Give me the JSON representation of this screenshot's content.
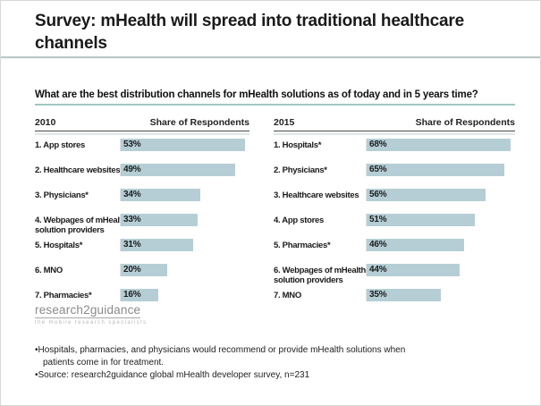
{
  "title": "Survey: mHealth will spread into traditional healthcare channels",
  "question": "What are the best distribution channels for mHealth solutions as of today and in 5 years time?",
  "colors": {
    "bar": "#b5ced5",
    "question_underline": "#9fc8c0",
    "title_rule": "#bcc8c8"
  },
  "chart_data": [
    {
      "type": "bar",
      "orientation": "horizontal",
      "title": "2010",
      "value_axis_label": "Share of Respondents",
      "categories": [
        "1. App stores",
        "2. Healthcare websites",
        "3. Physicians*",
        "4. Webpages of mHealth\nsolution providers",
        "5. Hospitals*",
        "6. MNO",
        "7. Pharmacies*"
      ],
      "values": [
        53,
        49,
        34,
        33,
        31,
        20,
        16
      ],
      "unit": "%",
      "xlim": [
        0,
        55
      ],
      "grid": false,
      "legend": false
    },
    {
      "type": "bar",
      "orientation": "horizontal",
      "title": "2015",
      "value_axis_label": "Share of Respondents",
      "categories": [
        "1. Hospitals*",
        "2. Physicians*",
        "3. Healthcare websites",
        "4. App stores",
        "5. Pharmacies*",
        "6. Webpages of mHealth\nsolution providers",
        "7. MNO"
      ],
      "values": [
        68,
        65,
        56,
        51,
        46,
        44,
        35
      ],
      "unit": "%",
      "xlim": [
        0,
        70
      ],
      "grid": false,
      "legend": false
    }
  ],
  "logo": {
    "name": "research2guidance",
    "tagline": "the mobile research specialists"
  },
  "footnotes": [
    "Hospitals, pharmacies, and physicians would recommend or provide mHealth solutions when patients come in for treatment.",
    "Source: research2guidance global mHealth developer survey, n=231"
  ]
}
